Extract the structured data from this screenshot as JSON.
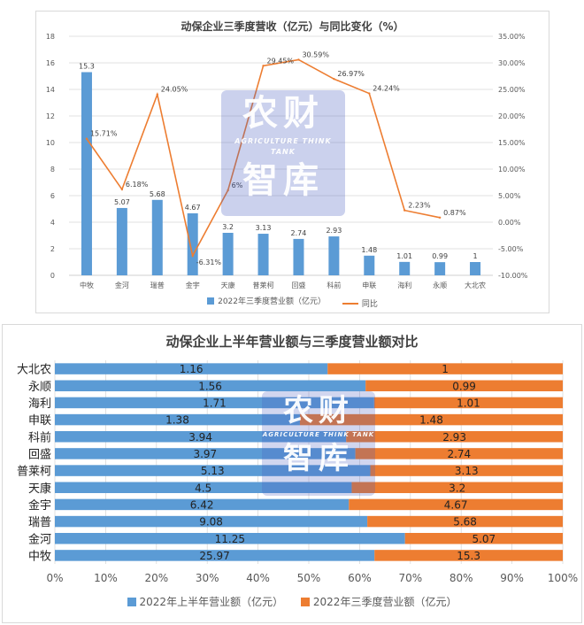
{
  "charts": [
    {
      "title": "动保企业三季度营收（亿元）与同比变化（%）",
      "legend": [
        "2022年三季度营业额（亿元）",
        "同比"
      ]
    },
    {
      "title": "动保企业上半年营业额与三季度营业额对比",
      "legend": [
        "2022年上半年营业额（亿元）",
        "2022年三季度营业额（亿元）"
      ]
    }
  ],
  "watermark": {
    "main": "农财智库",
    "line1": "农财",
    "line2": "智库",
    "sub": "AGRICULTURE THINK TANK"
  },
  "colors": {
    "blue": "#5b9bd5",
    "orange": "#ed7d31",
    "grid": "#d9d9d9",
    "axis_text": "#595959"
  },
  "chart_data": [
    {
      "type": "bar",
      "title": "动保企业三季度营收（亿元）与同比变化（%）",
      "categories": [
        "中牧",
        "金河",
        "瑞普",
        "金宇",
        "天康",
        "普莱柯",
        "回盛",
        "科前",
        "申联",
        "海利",
        "永顺",
        "大北农"
      ],
      "series": [
        {
          "name": "2022年三季度营业额（亿元）",
          "type": "bar",
          "axis": "left",
          "values": [
            15.3,
            5.07,
            5.68,
            4.67,
            3.2,
            3.13,
            2.74,
            2.93,
            1.48,
            1.01,
            0.99,
            1
          ],
          "labels": [
            "15.3",
            "5.07",
            "5.68",
            "4.67",
            "3.2",
            "3.13",
            "2.74",
            "2.93",
            "1.48",
            "1.01",
            "0.99",
            "1"
          ]
        },
        {
          "name": "同比",
          "type": "line",
          "axis": "right",
          "values": [
            15.71,
            6.18,
            24.05,
            -6.31,
            6,
            29.45,
            30.59,
            26.97,
            24.24,
            2.23,
            0.87,
            null
          ],
          "labels": [
            "15.71%",
            "6.18%",
            "24.05%",
            "-6.31%",
            "6%",
            "29.45%",
            "30.59%",
            "26.97%",
            "24.24%",
            "2.23%",
            "0.87%",
            ""
          ]
        }
      ],
      "ylim_left": [
        0,
        18
      ],
      "yticks_left": [
        "0",
        "2",
        "4",
        "6",
        "8",
        "10",
        "12",
        "14",
        "16",
        "18"
      ],
      "ylim_right": [
        -10,
        35
      ],
      "yticks_right": [
        "-10.00%",
        "-5.00%",
        "0.00%",
        "5.00%",
        "10.00%",
        "15.00%",
        "20.00%",
        "25.00%",
        "30.00%",
        "35.00%"
      ],
      "legend_position": "bottom"
    },
    {
      "type": "bar",
      "orientation": "horizontal",
      "stacked": "percent",
      "title": "动保企业上半年营业额与三季度营业额对比",
      "categories": [
        "中牧",
        "金河",
        "瑞普",
        "金宇",
        "天康",
        "普莱柯",
        "回盛",
        "科前",
        "申联",
        "海利",
        "永顺",
        "大北农"
      ],
      "series": [
        {
          "name": "2022年上半年营业额（亿元）",
          "values": [
            25.97,
            11.25,
            9.08,
            6.42,
            4.5,
            5.13,
            3.97,
            3.94,
            1.38,
            1.71,
            1.56,
            1.16
          ],
          "labels": [
            "25.97",
            "11.25",
            "9.08",
            "6.42",
            "4.5",
            "5.13",
            "3.97",
            "3.94",
            "1.38",
            "1.71",
            "1.56",
            "1.16"
          ]
        },
        {
          "name": "2022年三季度营业额（亿元）",
          "values": [
            15.3,
            5.07,
            5.68,
            4.67,
            3.2,
            3.13,
            2.74,
            2.93,
            1.48,
            1.01,
            0.99,
            1
          ],
          "labels": [
            "15.3",
            "5.07",
            "5.68",
            "4.67",
            "3.2",
            "3.13",
            "2.74",
            "2.93",
            "1.48",
            "1.01",
            "0.99",
            "1"
          ]
        }
      ],
      "xlim": [
        0,
        100
      ],
      "xticks": [
        "0%",
        "10%",
        "20%",
        "30%",
        "40%",
        "50%",
        "60%",
        "70%",
        "80%",
        "90%",
        "100%"
      ],
      "legend_position": "bottom"
    }
  ]
}
